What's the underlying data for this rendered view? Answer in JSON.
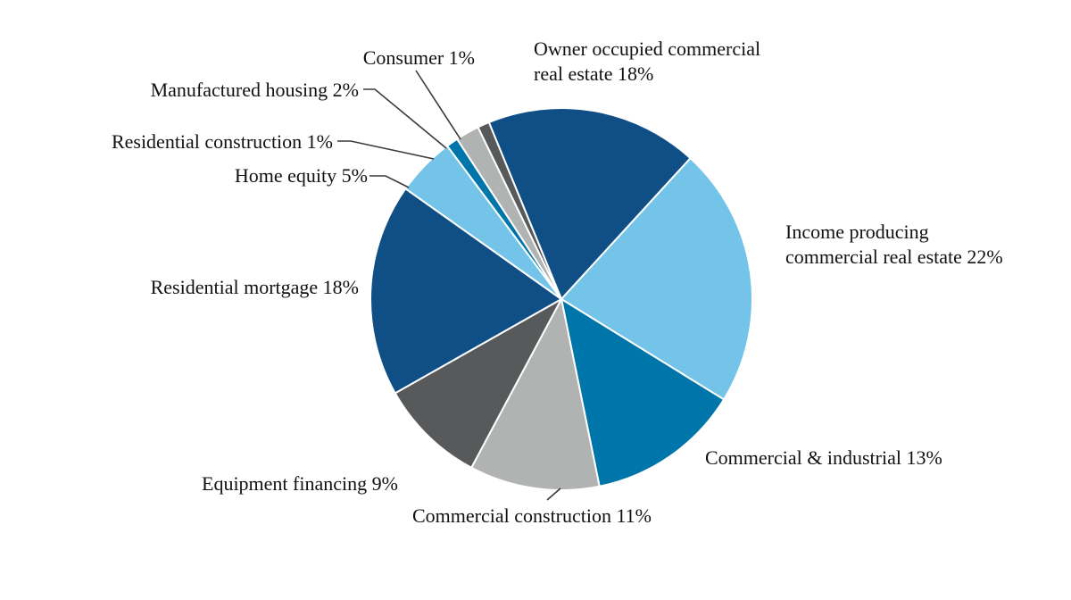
{
  "chart_data": {
    "type": "pie",
    "slices": [
      {
        "label": "Owner occupied commercial real estate",
        "label_lines": [
          "Owner occupied commercial",
          "real estate 18%"
        ],
        "value": 18,
        "color": "#0f4f86"
      },
      {
        "label": "Income producing commercial real estate",
        "label_lines": [
          "Income producing",
          "commercial real estate 22%"
        ],
        "value": 22,
        "color": "#73c4e8"
      },
      {
        "label": "Commercial & industrial",
        "label_lines": [
          "Commercial & industrial 13%"
        ],
        "value": 13,
        "color": "#0075a9"
      },
      {
        "label": "Commercial construction",
        "label_lines": [
          "Commercial construction 11%"
        ],
        "value": 11,
        "color": "#b1b3b3"
      },
      {
        "label": "Equipment financing",
        "label_lines": [
          "Equipment financing 9%"
        ],
        "value": 9,
        "color": "#58595b"
      },
      {
        "label": "Residential mortgage",
        "label_lines": [
          "Residential mortgage 18%"
        ],
        "value": 18,
        "color": "#0f4f86"
      },
      {
        "label": "Home equity",
        "label_lines": [
          "Home equity 5%"
        ],
        "value": 5,
        "color": "#73c4e8"
      },
      {
        "label": "Residential construction",
        "label_lines": [
          "Residential construction 1%"
        ],
        "value": 1,
        "color": "#0075a9"
      },
      {
        "label": "Manufactured housing",
        "label_lines": [
          "Manufactured housing 2%"
        ],
        "value": 2,
        "color": "#b1b3b3"
      },
      {
        "label": "Consumer",
        "label_lines": [
          "Consumer 1%"
        ],
        "value": 1,
        "color": "#58595b"
      }
    ],
    "value_unit": "%",
    "start_angle": "slightly left of 12 o'clock",
    "direction": "clockwise",
    "legend": "none"
  }
}
